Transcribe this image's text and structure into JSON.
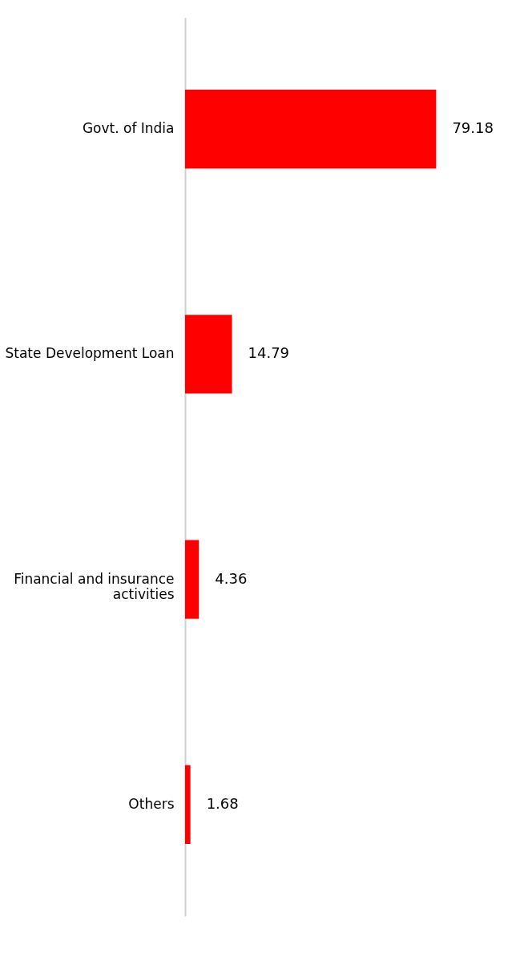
{
  "chart_data": {
    "type": "bar",
    "orientation": "horizontal",
    "categories": [
      "Govt. of India",
      "State Development Loan",
      "Financial and insurance activities",
      "Others"
    ],
    "values": [
      79.18,
      14.79,
      4.36,
      1.68
    ],
    "color": "#ff0000",
    "data_labels": true
  }
}
